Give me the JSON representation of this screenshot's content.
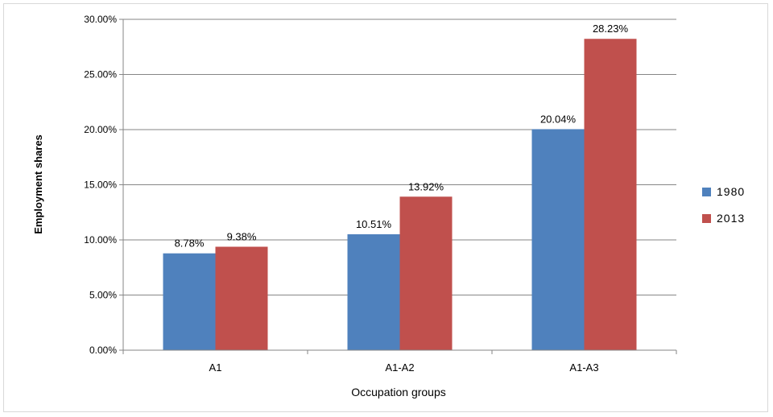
{
  "chart_data": {
    "type": "bar",
    "categories": [
      "A1",
      "A1-A2",
      "A1-A3"
    ],
    "series": [
      {
        "name": "1980",
        "values": [
          8.78,
          10.51,
          20.04
        ],
        "labels": [
          "8.78%",
          "10.51%",
          "20.04%"
        ],
        "color": "#4f81bd"
      },
      {
        "name": "2013",
        "values": [
          9.38,
          13.92,
          28.23
        ],
        "labels": [
          "9.38%",
          "13.92%",
          "28.23%"
        ],
        "color": "#c0504d"
      }
    ],
    "title": "",
    "xlabel": "Occupation groups",
    "ylabel": "Employment shares",
    "ylim": [
      0,
      30
    ],
    "yticks": [
      0,
      5,
      10,
      15,
      20,
      25,
      30
    ],
    "ytick_labels": [
      "0.00%",
      "5.00%",
      "10.00%",
      "15.00%",
      "20.00%",
      "25.00%",
      "30.00%"
    ],
    "grid": true,
    "legend_position": "right"
  }
}
